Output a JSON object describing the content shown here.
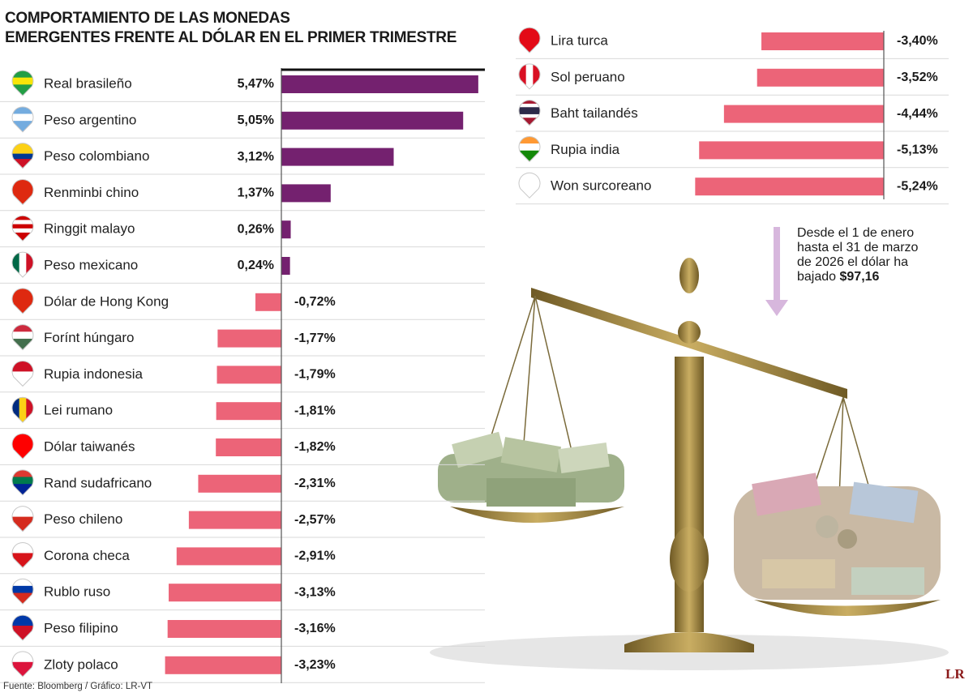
{
  "chart_data": [
    {
      "type": "bar",
      "orientation": "horizontal",
      "title": "COMPORTAMIENTO DE LAS MONEDAS\nEMERGENTES FRENTE AL DÓLAR EN EL PRIMER TRIMESTRE",
      "categories": [
        "Real brasileño",
        "Peso argentino",
        "Peso colombiano",
        "Renminbi chino",
        "Ringgit malayo",
        "Peso mexicano",
        "Dólar de Hong Kong",
        "Forínt húngaro",
        "Rupia indonesia",
        "Lei rumano",
        "Dólar taiwanés",
        "Rand sudafricano",
        "Peso chileno",
        "Corona checa",
        "Rublo ruso",
        "Peso filipino",
        "Zloty polaco"
      ],
      "values": [
        5.47,
        5.05,
        3.12,
        1.37,
        0.26,
        0.24,
        -0.72,
        -1.77,
        -1.79,
        -1.81,
        -1.82,
        -2.31,
        -2.57,
        -2.91,
        -3.13,
        -3.16,
        -3.23
      ],
      "value_labels": [
        "5,47%",
        "5,05%",
        "3,12%",
        "1,37%",
        "0,26%",
        "0,24%",
        "-0,72%",
        "-1,77%",
        "-1,79%",
        "-1,81%",
        "-1,82%",
        "-2,31%",
        "-2,57%",
        "-2,91%",
        "-3,13%",
        "-3,16%",
        "-3,23%"
      ],
      "positive_color": "#74216f",
      "negative_color": "#ec6478",
      "source": "Fuente: Bloomberg  / Gráfico: LR-VT"
    },
    {
      "type": "bar",
      "orientation": "horizontal",
      "categories": [
        "Lira turca",
        "Sol peruano",
        "Baht tailandés",
        "Rupia india",
        "Won surcoreano"
      ],
      "values": [
        -3.4,
        -3.52,
        -4.44,
        -5.13,
        -5.24
      ],
      "value_labels": [
        "-3,40%",
        "-3,52%",
        "-4,44%",
        "-5,13%",
        "-5,24%"
      ],
      "positive_color": "#74216f",
      "negative_color": "#ec6478",
      "annotation": "Desde el 1 de enero hasta el 31 de marzo de 2026 el dólar ha bajado",
      "annotation_value": "$97,16"
    }
  ],
  "logo": "LR"
}
